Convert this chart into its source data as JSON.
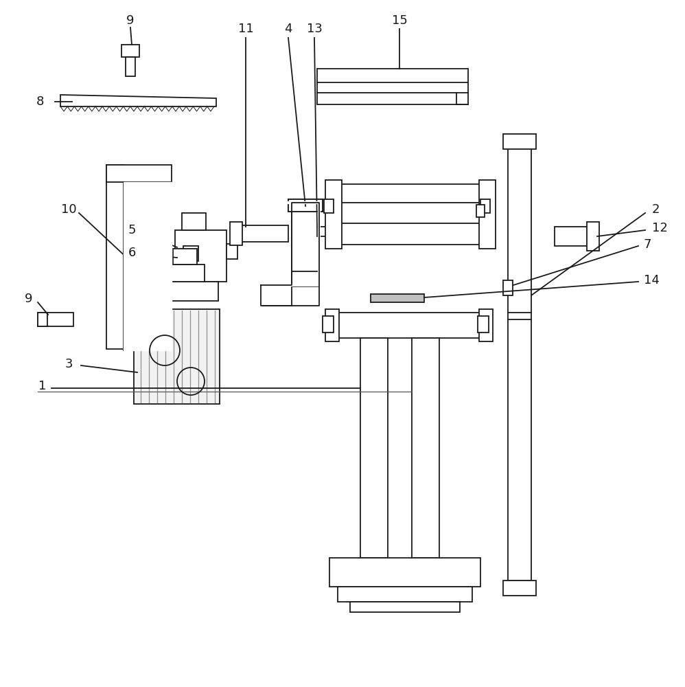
{
  "bg_color": "#ffffff",
  "lc": "#1a1a1a",
  "lw": 1.3,
  "lw_thin": 0.8,
  "fig_w": 9.98,
  "fig_h": 10.0,
  "dpi": 100
}
